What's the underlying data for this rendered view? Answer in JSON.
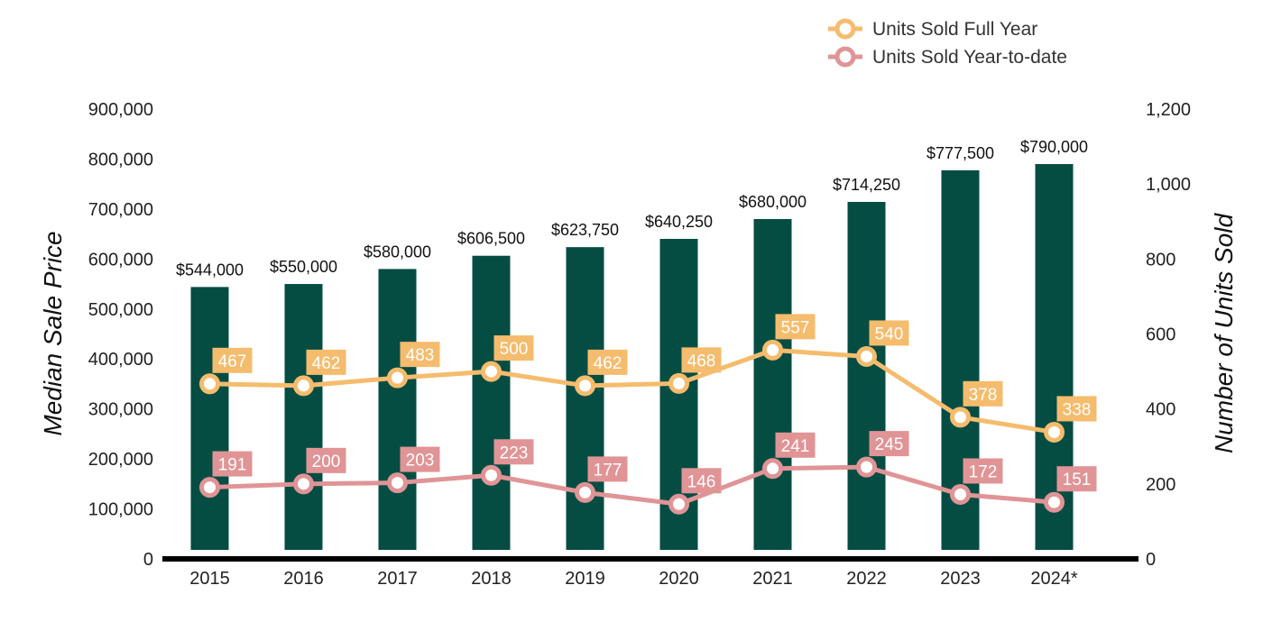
{
  "chart_data": {
    "type": "bar",
    "categories": [
      "2015",
      "2016",
      "2017",
      "2018",
      "2019",
      "2020",
      "2021",
      "2022",
      "2023",
      "2024*"
    ],
    "bar_values": [
      544000,
      550000,
      580000,
      606500,
      623750,
      640250,
      680000,
      714250,
      777500,
      790000
    ],
    "bar_labels": [
      "$544,000",
      "$550,000",
      "$580,000",
      "$606,500",
      "$623,750",
      "$640,250",
      "$680,000",
      "$714,250",
      "$777,500",
      "$790,000"
    ],
    "bar_color": "#054d43",
    "lines": [
      {
        "name": "Units Sold Full Year",
        "color": "#f5bc6d",
        "values": [
          467,
          462,
          483,
          500,
          462,
          468,
          557,
          540,
          378,
          338
        ]
      },
      {
        "name": "Units Sold Year-to-date",
        "color": "#e09496",
        "values": [
          191,
          200,
          203,
          223,
          177,
          146,
          241,
          245,
          172,
          151
        ]
      }
    ],
    "ylabel": "Median Sale Price",
    "y2label": "Number of Units Sold",
    "ylim": [
      0,
      900000
    ],
    "y2lim": [
      0,
      1200
    ],
    "yticks": [
      "0",
      "100,000",
      "200,000",
      "300,000",
      "400,000",
      "500,000",
      "600,000",
      "700,000",
      "800,000",
      "900,000"
    ],
    "y2ticks": [
      "0",
      "200",
      "400",
      "600",
      "800",
      "1,000",
      "1,200"
    ],
    "legend_position": "top-right",
    "grid": false
  }
}
